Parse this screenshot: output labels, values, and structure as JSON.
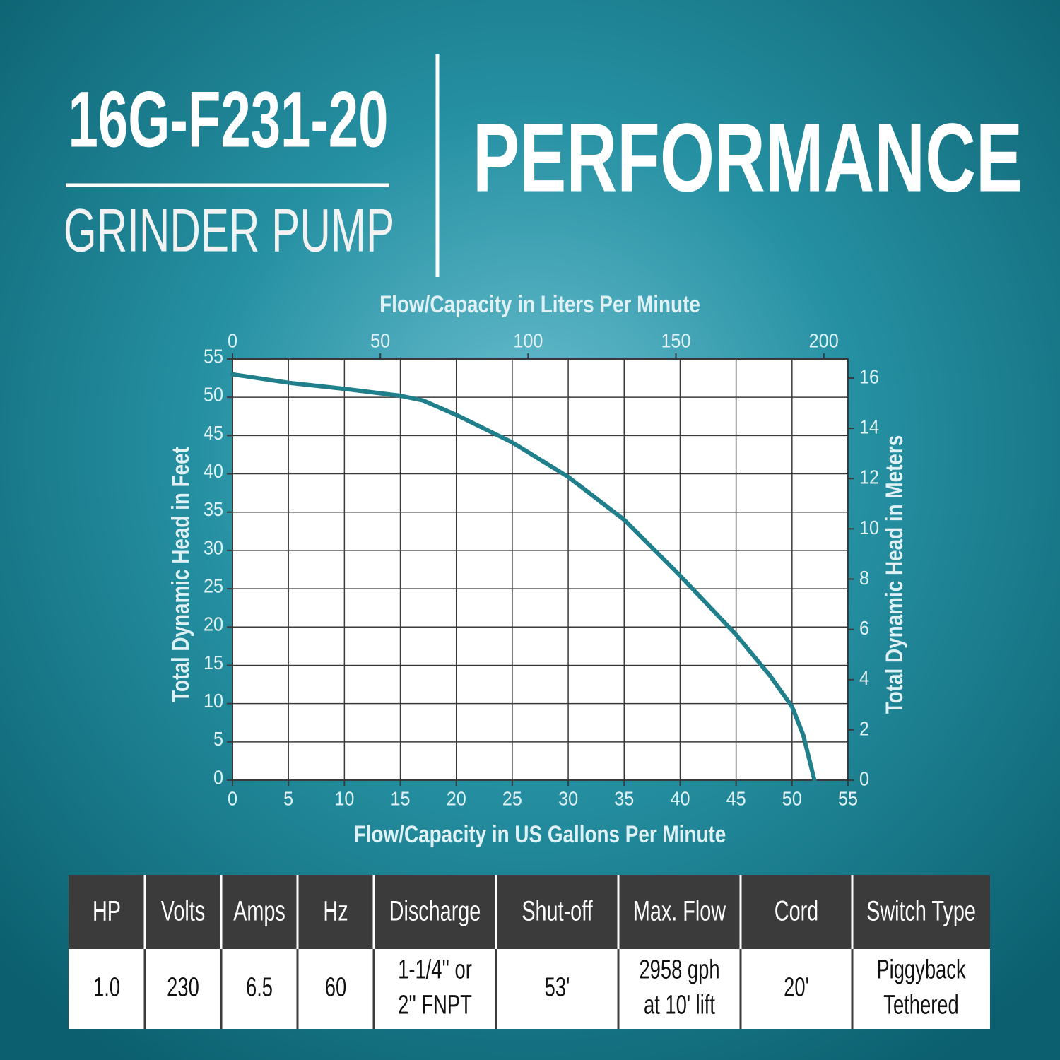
{
  "header": {
    "model": "16G-F231-20",
    "subtitle": "GRINDER PUMP",
    "title": "PERFORMANCE"
  },
  "chart_data": {
    "type": "line",
    "xlabel": "Flow/Capacity in US Gallons Per Minute",
    "x2label": "Flow/Capacity in Liters Per Minute",
    "ylabel": "Total Dynamic Head in Feet",
    "y2label": "Total Dynamic Head in Meters",
    "x": [
      0,
      5,
      10,
      15,
      17,
      20,
      25,
      30,
      35,
      40,
      45,
      48,
      50,
      51,
      52
    ],
    "series": [
      {
        "color": "#1f7f8a",
        "values": [
          53,
          51.9,
          51.1,
          50.2,
          49.6,
          47.7,
          44.1,
          39.6,
          34,
          26.7,
          19,
          13.7,
          9.6,
          5.9,
          0
        ]
      }
    ],
    "xlim": [
      0,
      55
    ],
    "xticks": [
      0,
      5,
      10,
      15,
      20,
      25,
      30,
      35,
      40,
      45,
      50,
      55
    ],
    "ylim": [
      0,
      55
    ],
    "yticks": [
      0,
      5,
      10,
      15,
      20,
      25,
      30,
      35,
      40,
      45,
      50,
      55
    ],
    "x2lim": [
      0,
      208.2
    ],
    "x2ticks": [
      0,
      50,
      100,
      150,
      200
    ],
    "y2lim": [
      0,
      16.76
    ],
    "y2ticks": [
      0,
      2,
      4,
      6,
      8,
      10,
      12,
      14,
      16
    ],
    "grid": true
  },
  "table": {
    "headers": [
      "HP",
      "Volts",
      "Amps",
      "Hz",
      "Discharge",
      "Shut-off",
      "Max. Flow",
      "Cord",
      "Switch Type"
    ],
    "rows": [
      [
        [
          "1.0"
        ],
        [
          "230"
        ],
        [
          "6.5"
        ],
        [
          "60"
        ],
        [
          "1-1/4'' or",
          "2'' FNPT"
        ],
        [
          "53'"
        ],
        [
          "2958 gph",
          "at 10' lift"
        ],
        [
          "20'"
        ],
        [
          "Piggyback",
          "Tethered"
        ]
      ]
    ]
  }
}
